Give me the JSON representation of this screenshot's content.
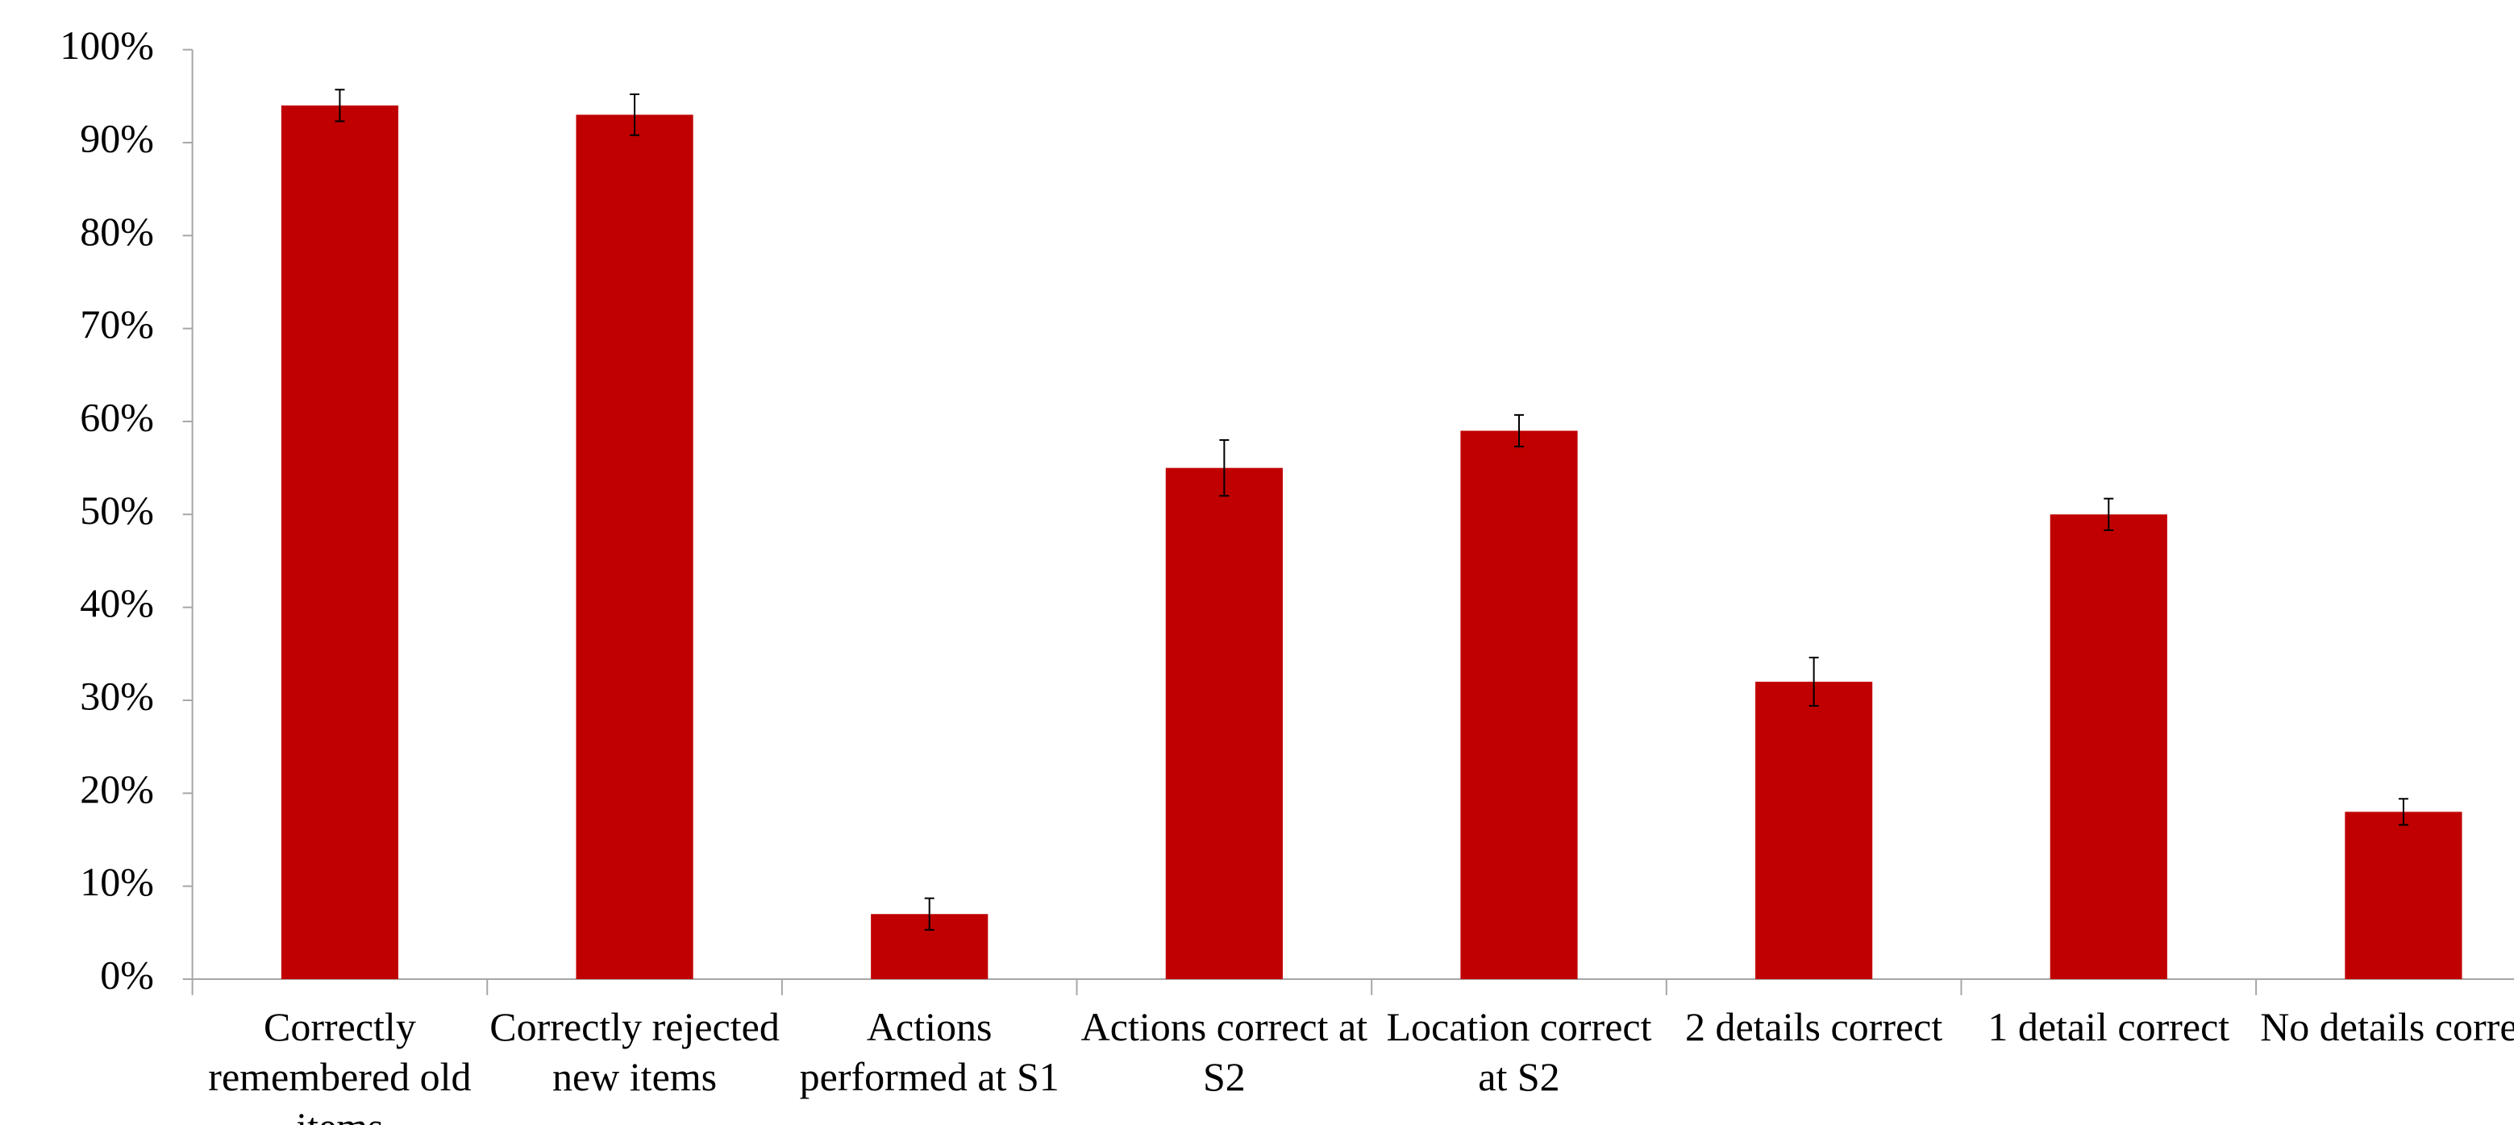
{
  "chart_data": {
    "type": "bar",
    "categories": [
      "Correctly remembered old items",
      "Correctly rejected new items",
      "Actions performed at S1",
      "Actions correct at S2",
      "Location correct at S2",
      "2 details correct",
      "1 detail correct",
      "No details correct"
    ],
    "values": [
      94,
      93,
      7,
      55,
      59,
      32,
      50,
      18
    ],
    "errors": [
      1.7,
      2.2,
      1.7,
      3,
      1.7,
      2.6,
      1.7,
      1.4
    ],
    "color": "#c00000",
    "ylim": [
      0,
      100
    ],
    "yticks": [
      {
        "value": 0,
        "label": "0%"
      },
      {
        "value": 10,
        "label": "10%"
      },
      {
        "value": 20,
        "label": "20%"
      },
      {
        "value": 30,
        "label": "30%"
      },
      {
        "value": 40,
        "label": "40%"
      },
      {
        "value": 50,
        "label": "50%"
      },
      {
        "value": 60,
        "label": "60%"
      },
      {
        "value": 70,
        "label": "70%"
      },
      {
        "value": 80,
        "label": "80%"
      },
      {
        "value": 90,
        "label": "90%"
      },
      {
        "value": 100,
        "label": "100%"
      }
    ],
    "grid": false
  }
}
